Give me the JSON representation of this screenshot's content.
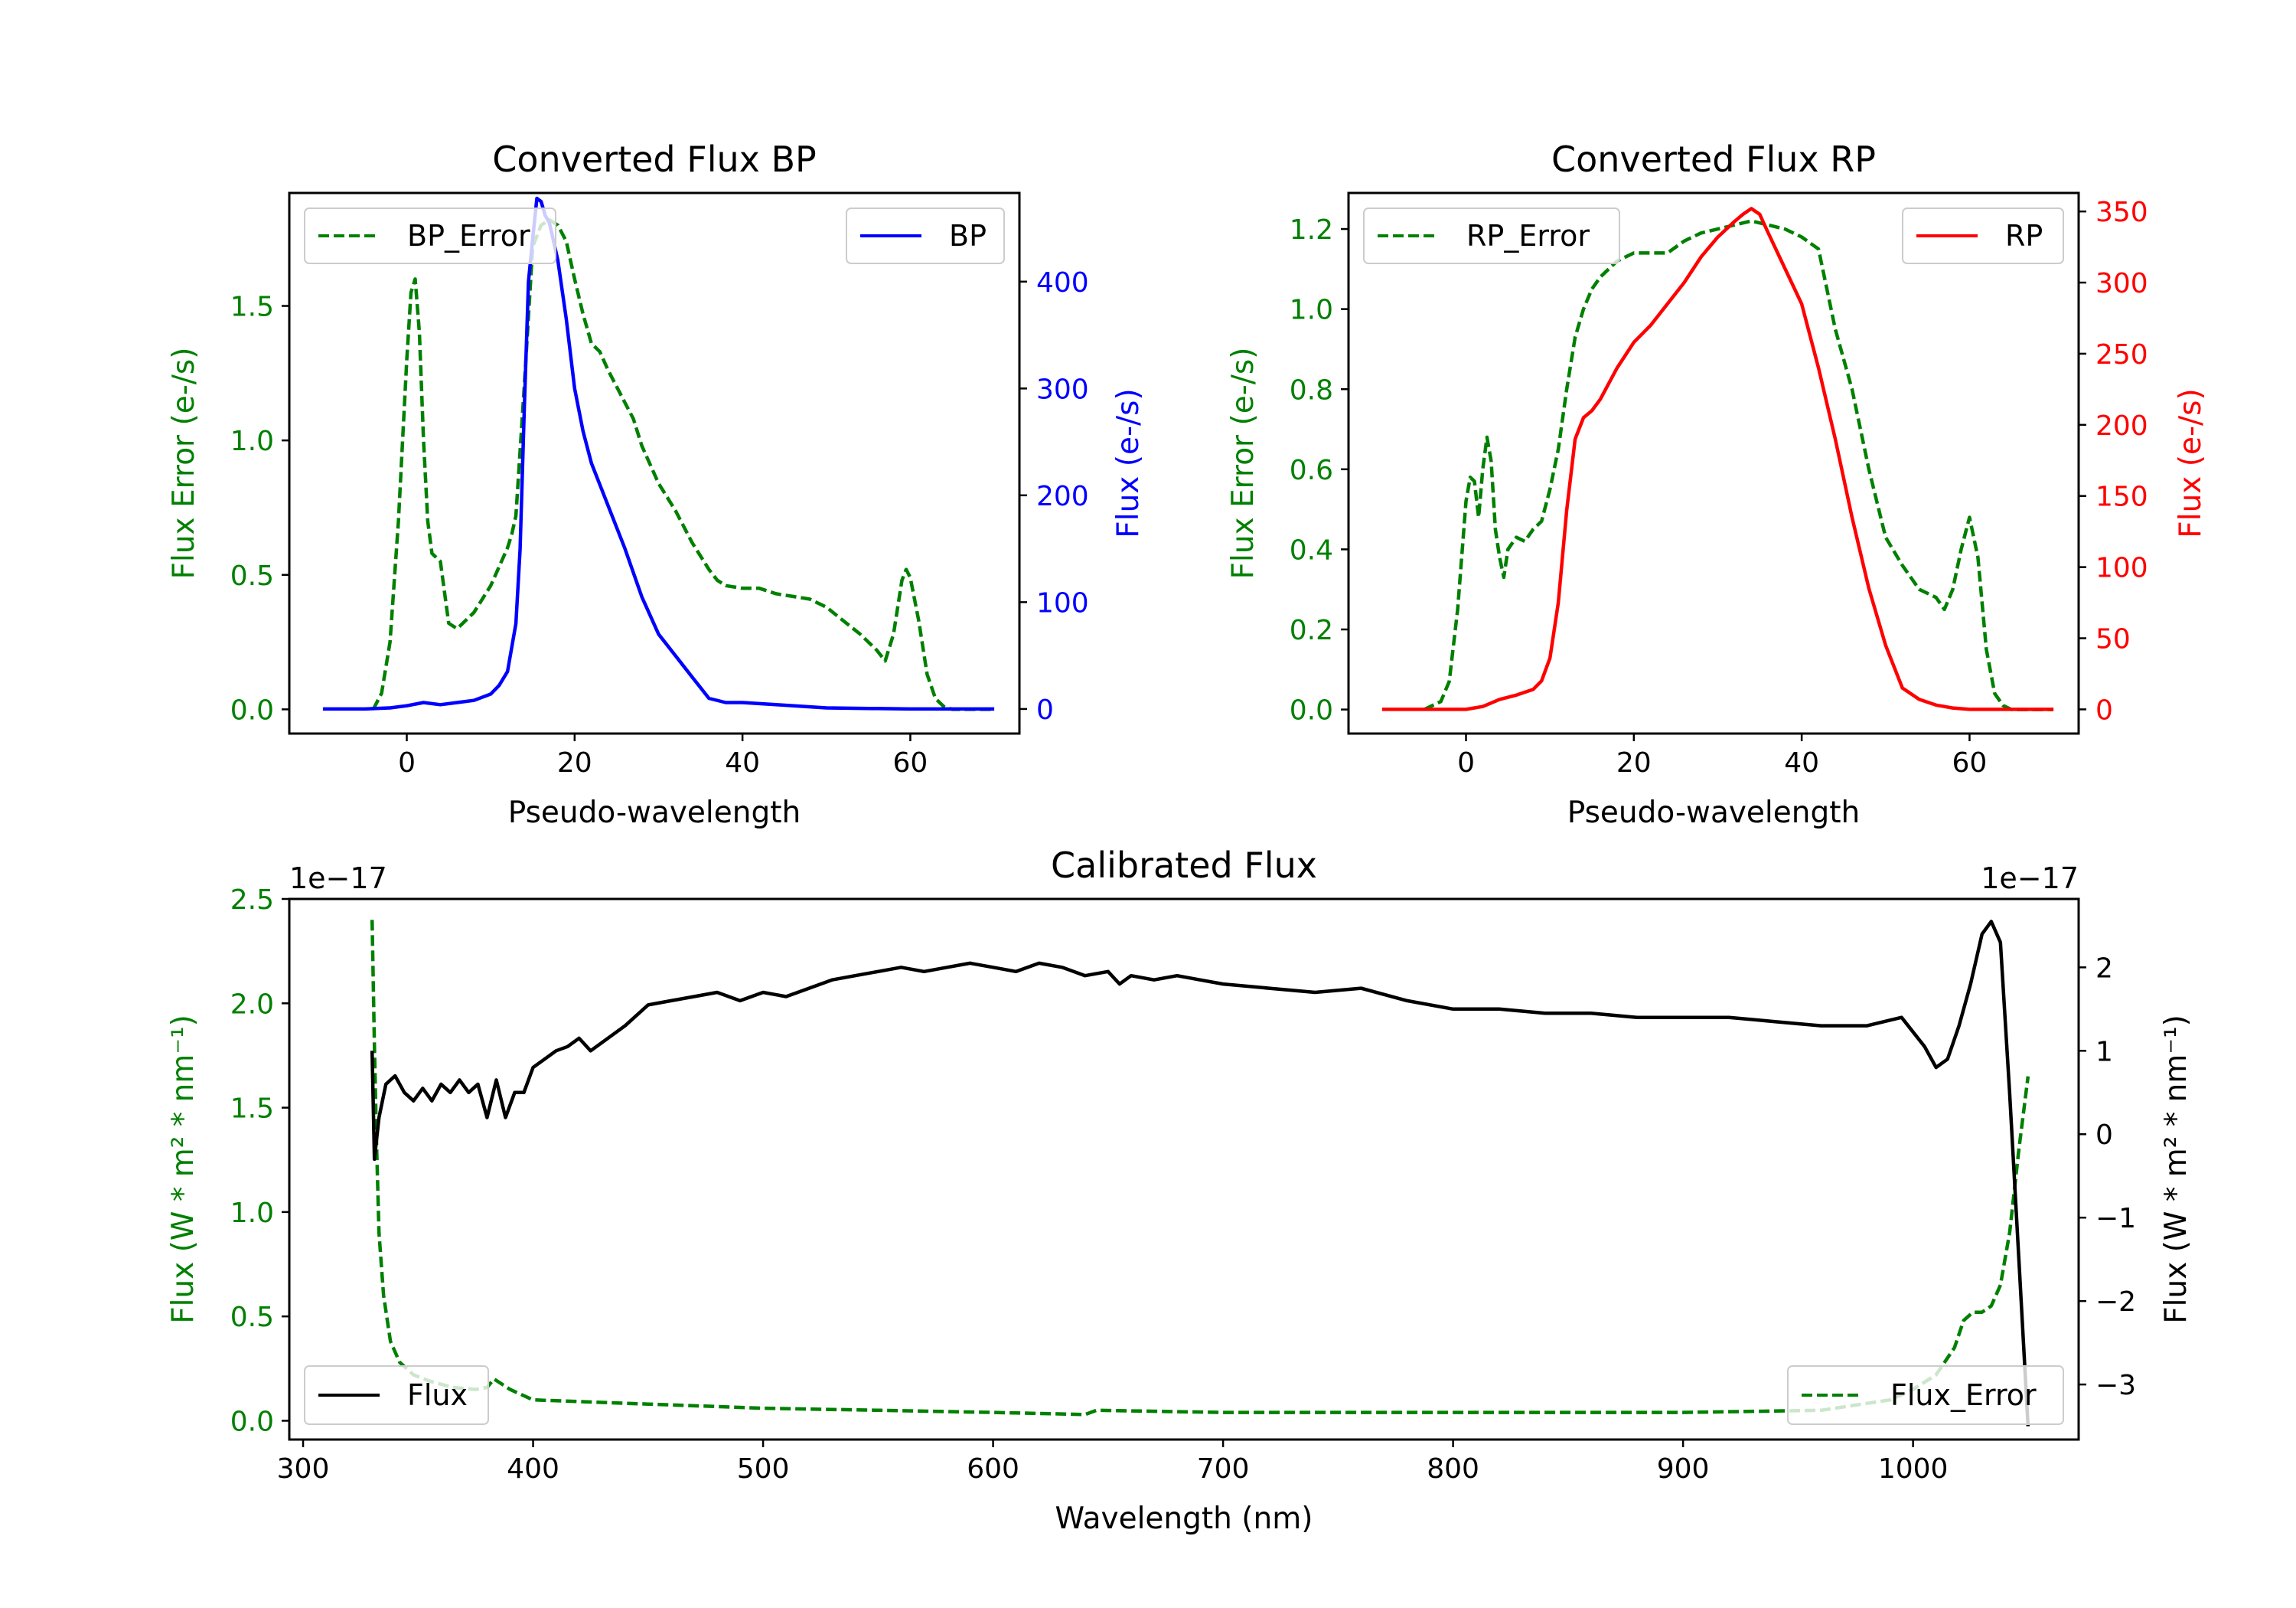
{
  "colors": {
    "error": "#008000",
    "bp": "#0000ff",
    "rp": "#ff0000",
    "flux": "#000000",
    "axis": "#000000"
  },
  "chart_data": [
    {
      "id": "bp",
      "type": "line",
      "title": "Converted Flux BP",
      "xlabel": "Pseudo-wavelength",
      "ylabel_left": "Flux Error (e-/s)",
      "ylabel_right": "Flux (e-/s)",
      "xlim": [
        -14,
        73
      ],
      "ylim_left": [
        -0.09,
        1.92
      ],
      "ylim_right": [
        -23,
        483
      ],
      "xticks": [
        0,
        20,
        40,
        60
      ],
      "yticks_left": [
        0.0,
        0.5,
        1.0,
        1.5
      ],
      "yticks_right": [
        0,
        100,
        200,
        300,
        400
      ],
      "series": [
        {
          "name": "BP_Error",
          "axis": "left",
          "style": "dashed",
          "color": "#008000",
          "x": [
            -4,
            -3,
            -2,
            -1,
            0,
            0.5,
            1,
            1.5,
            2,
            2.5,
            3,
            4,
            5,
            6,
            7,
            8,
            9,
            10,
            11,
            12,
            12.5,
            13,
            14,
            15,
            16,
            17,
            18,
            19,
            20,
            21,
            22,
            23,
            24,
            25,
            26,
            27,
            28,
            30,
            32,
            34,
            36,
            37,
            38,
            40,
            42,
            44,
            46,
            48,
            50,
            52,
            54,
            56,
            57,
            58,
            59,
            59.5,
            60,
            61,
            62,
            63,
            64,
            65,
            70
          ],
          "values": [
            0.0,
            0.06,
            0.25,
            0.7,
            1.3,
            1.55,
            1.6,
            1.4,
            1.0,
            0.7,
            0.58,
            0.55,
            0.32,
            0.3,
            0.33,
            0.36,
            0.41,
            0.46,
            0.53,
            0.6,
            0.65,
            0.72,
            1.2,
            1.72,
            1.8,
            1.82,
            1.8,
            1.74,
            1.6,
            1.47,
            1.36,
            1.33,
            1.26,
            1.2,
            1.14,
            1.08,
            0.98,
            0.84,
            0.74,
            0.62,
            0.52,
            0.48,
            0.46,
            0.45,
            0.45,
            0.43,
            0.42,
            0.41,
            0.38,
            0.33,
            0.28,
            0.22,
            0.18,
            0.28,
            0.48,
            0.52,
            0.49,
            0.33,
            0.13,
            0.04,
            0.01,
            0.0,
            0.0
          ]
        },
        {
          "name": "BP",
          "axis": "right",
          "style": "solid",
          "color": "#0000ff",
          "x": [
            -10,
            -5,
            -2,
            0,
            2,
            4,
            6,
            8,
            10,
            11,
            12,
            13,
            13.5,
            14,
            14.5,
            15,
            15.5,
            16,
            16.5,
            17,
            18,
            19,
            20,
            21,
            22,
            24,
            26,
            28,
            30,
            32,
            34,
            36,
            38,
            40,
            44,
            50,
            60,
            65,
            70
          ],
          "values": [
            0,
            0,
            1,
            3,
            6,
            4,
            6,
            8,
            14,
            22,
            35,
            80,
            150,
            280,
            400,
            440,
            478,
            475,
            462,
            455,
            420,
            365,
            300,
            260,
            230,
            190,
            150,
            105,
            70,
            50,
            30,
            10,
            6,
            6,
            4,
            1,
            0,
            0,
            0
          ]
        }
      ],
      "legend": [
        {
          "label": "BP_Error",
          "position": "upper-left"
        },
        {
          "label": "BP",
          "position": "upper-right"
        }
      ]
    },
    {
      "id": "rp",
      "type": "line",
      "title": "Converted Flux RP",
      "xlabel": "Pseudo-wavelength",
      "ylabel_left": "Flux Error (e-/s)",
      "ylabel_right": "Flux (e-/s)",
      "xlim": [
        -14,
        73
      ],
      "ylim_left": [
        -0.06,
        1.29
      ],
      "ylim_right": [
        -17,
        363
      ],
      "xticks": [
        0,
        20,
        40,
        60
      ],
      "yticks_left": [
        0.0,
        0.2,
        0.4,
        0.6,
        0.8,
        1.0,
        1.2
      ],
      "yticks_right": [
        0,
        50,
        100,
        150,
        200,
        250,
        300,
        350
      ],
      "series": [
        {
          "name": "RP_Error",
          "axis": "left",
          "style": "dashed",
          "color": "#008000",
          "x": [
            -5,
            -3,
            -2,
            -1,
            0,
            0.5,
            1,
            1.5,
            2,
            2.5,
            3,
            3.5,
            4,
            4.5,
            5,
            6,
            7,
            8,
            9,
            10,
            11,
            12,
            13,
            14,
            15,
            16,
            17,
            18,
            20,
            22,
            24,
            26,
            28,
            30,
            32,
            34,
            36,
            38,
            40,
            42,
            44,
            46,
            48,
            50,
            52,
            54,
            56,
            57,
            58,
            59,
            60,
            61,
            62,
            63,
            64,
            65,
            70
          ],
          "values": [
            0.0,
            0.02,
            0.07,
            0.25,
            0.52,
            0.58,
            0.57,
            0.48,
            0.6,
            0.68,
            0.62,
            0.45,
            0.38,
            0.33,
            0.4,
            0.43,
            0.42,
            0.45,
            0.47,
            0.55,
            0.65,
            0.8,
            0.93,
            1.0,
            1.05,
            1.08,
            1.1,
            1.12,
            1.14,
            1.14,
            1.14,
            1.17,
            1.19,
            1.2,
            1.21,
            1.22,
            1.21,
            1.2,
            1.18,
            1.15,
            0.95,
            0.8,
            0.6,
            0.43,
            0.36,
            0.3,
            0.28,
            0.25,
            0.3,
            0.4,
            0.48,
            0.38,
            0.15,
            0.04,
            0.01,
            0.0,
            0.0
          ]
        },
        {
          "name": "RP",
          "axis": "right",
          "style": "solid",
          "color": "#ff0000",
          "x": [
            -10,
            -5,
            0,
            2,
            4,
            6,
            8,
            9,
            10,
            11,
            12,
            13,
            14,
            15,
            16,
            18,
            20,
            22,
            24,
            26,
            28,
            30,
            32,
            33,
            34,
            35,
            36,
            38,
            40,
            42,
            44,
            46,
            48,
            50,
            52,
            54,
            56,
            58,
            60,
            62,
            64,
            70
          ],
          "values": [
            0,
            0,
            0,
            2,
            7,
            10,
            14,
            20,
            36,
            75,
            140,
            190,
            205,
            210,
            218,
            240,
            258,
            270,
            285,
            300,
            318,
            332,
            343,
            348,
            352,
            348,
            335,
            310,
            285,
            240,
            190,
            135,
            85,
            45,
            15,
            7,
            3,
            1,
            0,
            0,
            0,
            0
          ]
        }
      ],
      "legend": [
        {
          "label": "RP_Error",
          "position": "upper-left"
        },
        {
          "label": "RP",
          "position": "upper-right"
        }
      ]
    },
    {
      "id": "cal",
      "type": "line",
      "title": "Calibrated Flux",
      "xlabel": "Wavelength (nm)",
      "ylabel_left": "Flux (W * m² * nm⁻¹)",
      "ylabel_right": "Flux (W * m² * nm⁻¹)",
      "offset_left": "1e−17",
      "offset_right": "1e−17",
      "xlim": [
        294,
        1072
      ],
      "ylim_left": [
        -0.09,
        2.5
      ],
      "ylim_right": [
        -3.66,
        2.82
      ],
      "xticks": [
        300,
        400,
        500,
        600,
        700,
        800,
        900,
        1000
      ],
      "yticks_left": [
        0.0,
        0.5,
        1.0,
        1.5,
        2.0,
        2.5
      ],
      "yticks_left_labels": [
        "0.0",
        "0.5",
        "1.0",
        "1.5",
        "2.0",
        "2.5"
      ],
      "yticks_right": [
        -3,
        -2,
        -1,
        0,
        1,
        2
      ],
      "yticks_right_labels": [
        "−3",
        "−2",
        "−1",
        "0",
        "1",
        "2"
      ],
      "series": [
        {
          "name": "Flux_Error",
          "axis": "left",
          "style": "dashed",
          "color": "#008000",
          "x": [
            330,
            331,
            332,
            333,
            335,
            338,
            342,
            348,
            355,
            365,
            375,
            380,
            383,
            390,
            400,
            450,
            500,
            550,
            600,
            640,
            645,
            700,
            800,
            900,
            960,
            990,
            1000,
            1010,
            1018,
            1022,
            1026,
            1030,
            1034,
            1038,
            1042,
            1046,
            1050
          ],
          "values": [
            2.4,
            1.8,
            1.3,
            0.9,
            0.6,
            0.38,
            0.28,
            0.22,
            0.19,
            0.16,
            0.15,
            0.16,
            0.2,
            0.15,
            0.1,
            0.08,
            0.06,
            0.05,
            0.04,
            0.03,
            0.05,
            0.04,
            0.04,
            0.04,
            0.05,
            0.1,
            0.15,
            0.22,
            0.35,
            0.48,
            0.52,
            0.52,
            0.55,
            0.65,
            0.9,
            1.3,
            1.65
          ]
        },
        {
          "name": "Flux",
          "axis": "right",
          "style": "solid",
          "color": "#000000",
          "x": [
            330,
            331,
            333,
            336,
            340,
            344,
            348,
            352,
            356,
            360,
            364,
            368,
            372,
            376,
            380,
            384,
            388,
            392,
            396,
            400,
            405,
            410,
            415,
            420,
            425,
            430,
            440,
            450,
            460,
            470,
            480,
            490,
            500,
            510,
            520,
            530,
            540,
            550,
            560,
            570,
            580,
            590,
            600,
            610,
            620,
            630,
            640,
            650,
            655,
            660,
            670,
            680,
            690,
            700,
            720,
            740,
            760,
            780,
            800,
            820,
            840,
            860,
            880,
            900,
            920,
            940,
            960,
            980,
            995,
            1005,
            1010,
            1015,
            1020,
            1025,
            1030,
            1034,
            1038,
            1042,
            1046,
            1050
          ],
          "values": [
            1.0,
            -0.3,
            0.2,
            0.6,
            0.7,
            0.5,
            0.4,
            0.55,
            0.4,
            0.6,
            0.5,
            0.65,
            0.5,
            0.6,
            0.2,
            0.65,
            0.2,
            0.5,
            0.5,
            0.8,
            0.9,
            1.0,
            1.05,
            1.15,
            1.0,
            1.1,
            1.3,
            1.55,
            1.6,
            1.65,
            1.7,
            1.6,
            1.7,
            1.65,
            1.75,
            1.85,
            1.9,
            1.95,
            2.0,
            1.95,
            2.0,
            2.05,
            2.0,
            1.95,
            2.05,
            2.0,
            1.9,
            1.95,
            1.8,
            1.9,
            1.85,
            1.9,
            1.85,
            1.8,
            1.75,
            1.7,
            1.75,
            1.6,
            1.5,
            1.5,
            1.45,
            1.45,
            1.4,
            1.4,
            1.4,
            1.35,
            1.3,
            1.3,
            1.4,
            1.05,
            0.8,
            0.9,
            1.3,
            1.8,
            2.4,
            2.55,
            2.3,
            0.5,
            -1.5,
            -3.5
          ]
        }
      ],
      "legend": [
        {
          "label": "Flux",
          "position": "lower-left"
        },
        {
          "label": "Flux_Error",
          "position": "lower-right"
        }
      ]
    }
  ]
}
